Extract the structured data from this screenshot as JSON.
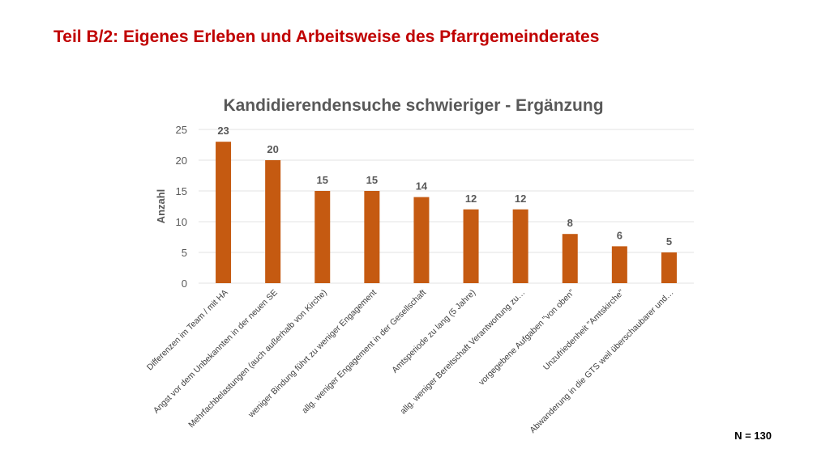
{
  "page": {
    "title": "Teil B/2: Eigenes Erleben und Arbeitsweise des Pfarrgemeinderates",
    "footnote": "N = 130"
  },
  "colors": {
    "title": "#c00000",
    "bar": "#c55a11",
    "text": "#595959"
  },
  "chart_data": {
    "type": "bar",
    "title": "Kandidierendensuche schwieriger - Ergänzung",
    "xlabel": "",
    "ylabel": "Anzahl",
    "ylim": [
      0,
      25
    ],
    "yticks": [
      0,
      5,
      10,
      15,
      20,
      25
    ],
    "grid": true,
    "legend": "none",
    "categories": [
      "Differenzen im Team / mit HA",
      "Angst vor dem Unbekannten in der neuen SE",
      "Mehrfachbelastungen (auch außerhalb von Kirche)",
      "weniger Bindung führt zu weniger Engagement",
      "allg. weniger Engagement in der Gesellschaft",
      "Amtsperiode zu lang (5 Jahre)",
      "allg. weniger Bereitschaft Verantwortung zu…",
      "vorgegebene Aufgaben \"von oben\"",
      "Unzufriedenheit \"Amtskirche\"",
      "Abwanderung in die GTS weil überschaubarer und…"
    ],
    "values": [
      23,
      20,
      15,
      15,
      14,
      12,
      12,
      8,
      6,
      5
    ]
  }
}
